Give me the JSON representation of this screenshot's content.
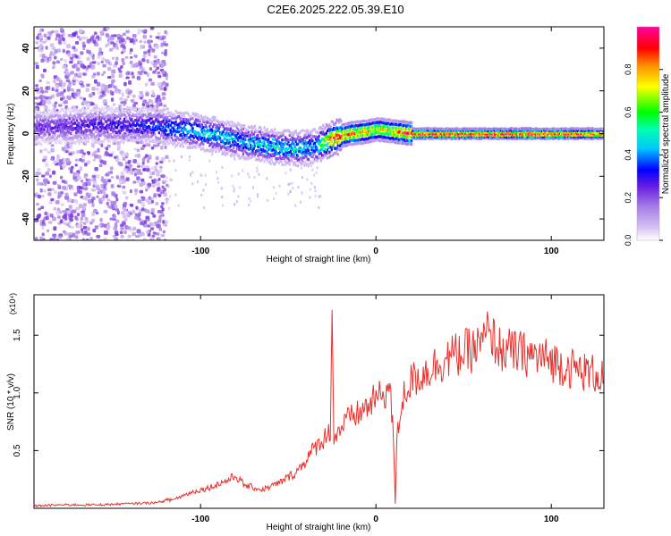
{
  "title": "C2E6.2025.222.05.39.E10",
  "colors": {
    "snr_line": "#e8312c",
    "colorbar_stops": [
      "#ffffff",
      "#c8a4f0",
      "#8a2be2",
      "#0000ff",
      "#00ffff",
      "#00ff00",
      "#ffff00",
      "#ff8c00",
      "#ff0000",
      "#ff00aa"
    ]
  },
  "chart_data": [
    {
      "type": "heatmap",
      "title": "C2E6.2025.222.05.39.E10",
      "xlabel": "Height of straight line (km)",
      "ylabel": "Frequency (Hz)",
      "xlim": [
        -195,
        130
      ],
      "ylim": [
        -50,
        50
      ],
      "xticks": [
        -100,
        0,
        100
      ],
      "yticks": [
        -40,
        -20,
        0,
        20,
        40
      ],
      "colorbar": {
        "label": "Normalized spectral amplitude",
        "range": [
          0,
          1
        ],
        "ticks": [
          "0.0",
          "0.2",
          "0.4",
          "0.6",
          "0.8"
        ]
      },
      "description_points": {
        "center_frequency_track": {
          "x": [
            -190,
            -160,
            -130,
            -110,
            -90,
            -75,
            -60,
            -45,
            -35,
            -25,
            -15,
            -5,
            0,
            10,
            20,
            40,
            60,
            80,
            100,
            120,
            130
          ],
          "y": [
            3,
            4,
            4,
            2,
            -1,
            -4,
            -6,
            -7,
            -6,
            -2,
            0,
            1,
            2,
            1,
            0,
            0,
            0,
            0,
            0,
            0,
            0
          ]
        },
        "peak_amplitude_along_track": {
          "x": [
            -190,
            -160,
            -130,
            -110,
            -90,
            -75,
            -60,
            -45,
            -35,
            -25,
            -15,
            -5,
            0,
            10,
            20,
            40,
            60,
            80,
            100,
            120,
            130
          ],
          "values": [
            0.25,
            0.3,
            0.35,
            0.45,
            0.5,
            0.45,
            0.5,
            0.5,
            0.45,
            0.9,
            0.85,
            0.8,
            0.75,
            0.8,
            0.95,
            0.95,
            0.95,
            0.95,
            0.95,
            0.9,
            0.8
          ]
        }
      }
    },
    {
      "type": "line",
      "xlabel": "Height of straight line (km)",
      "ylabel": "SNR (10 * v/v)",
      "y_multiplier_label": "(x10⁴)",
      "xlim": [
        -195,
        130
      ],
      "ylim": [
        0,
        1.85
      ],
      "xticks": [
        -100,
        0,
        100
      ],
      "yticks": [
        "0.5",
        "1.0",
        "1.5"
      ],
      "ytick_values": [
        0.5,
        1.0,
        1.5
      ],
      "series": [
        {
          "x": [
            -195,
            -180,
            -160,
            -140,
            -125,
            -115,
            -105,
            -95,
            -85,
            -80,
            -75,
            -65,
            -55,
            -45,
            -40,
            -35,
            -30,
            -26,
            -25,
            -24,
            -20,
            -15,
            -10,
            -5,
            0,
            5,
            8,
            10,
            11,
            12,
            15,
            20,
            30,
            40,
            50,
            60,
            65,
            70,
            80,
            90,
            100,
            110,
            120,
            130
          ],
          "y": [
            0.02,
            0.03,
            0.03,
            0.04,
            0.05,
            0.08,
            0.14,
            0.18,
            0.24,
            0.28,
            0.2,
            0.16,
            0.22,
            0.32,
            0.42,
            0.52,
            0.6,
            0.68,
            1.72,
            0.6,
            0.7,
            0.78,
            0.82,
            0.88,
            0.95,
            1.0,
            1.05,
            0.6,
            0.04,
            0.6,
            0.95,
            1.1,
            1.2,
            1.3,
            1.35,
            1.4,
            1.55,
            1.38,
            1.35,
            1.32,
            1.28,
            1.22,
            1.18,
            1.15
          ]
        }
      ]
    }
  ]
}
